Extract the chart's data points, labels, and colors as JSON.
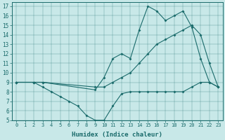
{
  "xlabel": "Humidex (Indice chaleur)",
  "bg_color": "#c8e8e8",
  "line_color": "#1a6b6b",
  "xlim": [
    -0.5,
    23.5
  ],
  "ylim": [
    5,
    17.4
  ],
  "xticks": [
    0,
    1,
    2,
    3,
    4,
    5,
    6,
    7,
    8,
    9,
    10,
    11,
    12,
    13,
    14,
    15,
    16,
    17,
    18,
    19,
    20,
    21,
    22,
    23
  ],
  "yticks": [
    5,
    6,
    7,
    8,
    9,
    10,
    11,
    12,
    13,
    14,
    15,
    16,
    17
  ],
  "line1_x": [
    0,
    2,
    3,
    9,
    10,
    11,
    12,
    13,
    14,
    15,
    16,
    17,
    18,
    19,
    20,
    21,
    22,
    23
  ],
  "line1_y": [
    9,
    9,
    9,
    8.5,
    8.5,
    9,
    9.5,
    10,
    11,
    12,
    13,
    13.5,
    14,
    14.5,
    15,
    14,
    11,
    8.5
  ],
  "line2_x": [
    0,
    2,
    3,
    4,
    5,
    6,
    7,
    8,
    9,
    10,
    11,
    12,
    13,
    14,
    15,
    16,
    17,
    18,
    19,
    20,
    21,
    22,
    23
  ],
  "line2_y": [
    9,
    9,
    8.5,
    8,
    7.5,
    7,
    6.5,
    5.5,
    5,
    5,
    6.5,
    7.8,
    8,
    8,
    8,
    8,
    8,
    8,
    8,
    8.5,
    9,
    9,
    8.5
  ],
  "line3_x": [
    0,
    2,
    3,
    9,
    10,
    11,
    12,
    13,
    14,
    15,
    16,
    17,
    18,
    19,
    20,
    21,
    22,
    23
  ],
  "line3_y": [
    9,
    9,
    9,
    8.2,
    9.5,
    11.5,
    12,
    11.5,
    14.5,
    17,
    16.5,
    15.5,
    16,
    16.5,
    14.8,
    11.5,
    9,
    8.5
  ]
}
